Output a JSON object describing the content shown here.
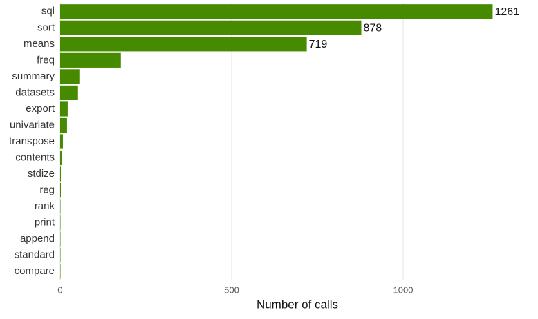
{
  "chart_data": {
    "type": "barh",
    "x_label": "Number of calls",
    "categories": [
      "sql",
      "sort",
      "means",
      "freq",
      "summary",
      "datasets",
      "export",
      "univariate",
      "transpose",
      "contents",
      "stdize",
      "reg",
      "rank",
      "print",
      "append",
      "standard",
      "compare"
    ],
    "values": [
      1261,
      878,
      719,
      177,
      56,
      52,
      22,
      20,
      8,
      4,
      2,
      2,
      1,
      1,
      1,
      1,
      1
    ],
    "value_labels": [
      "1261",
      "878",
      "719",
      null,
      null,
      null,
      null,
      null,
      null,
      null,
      null,
      null,
      null,
      null,
      null,
      null,
      null
    ],
    "color": "#468a00",
    "xlim": [
      0,
      1375
    ],
    "xticks": [
      0,
      500,
      1000
    ],
    "grid": true
  }
}
